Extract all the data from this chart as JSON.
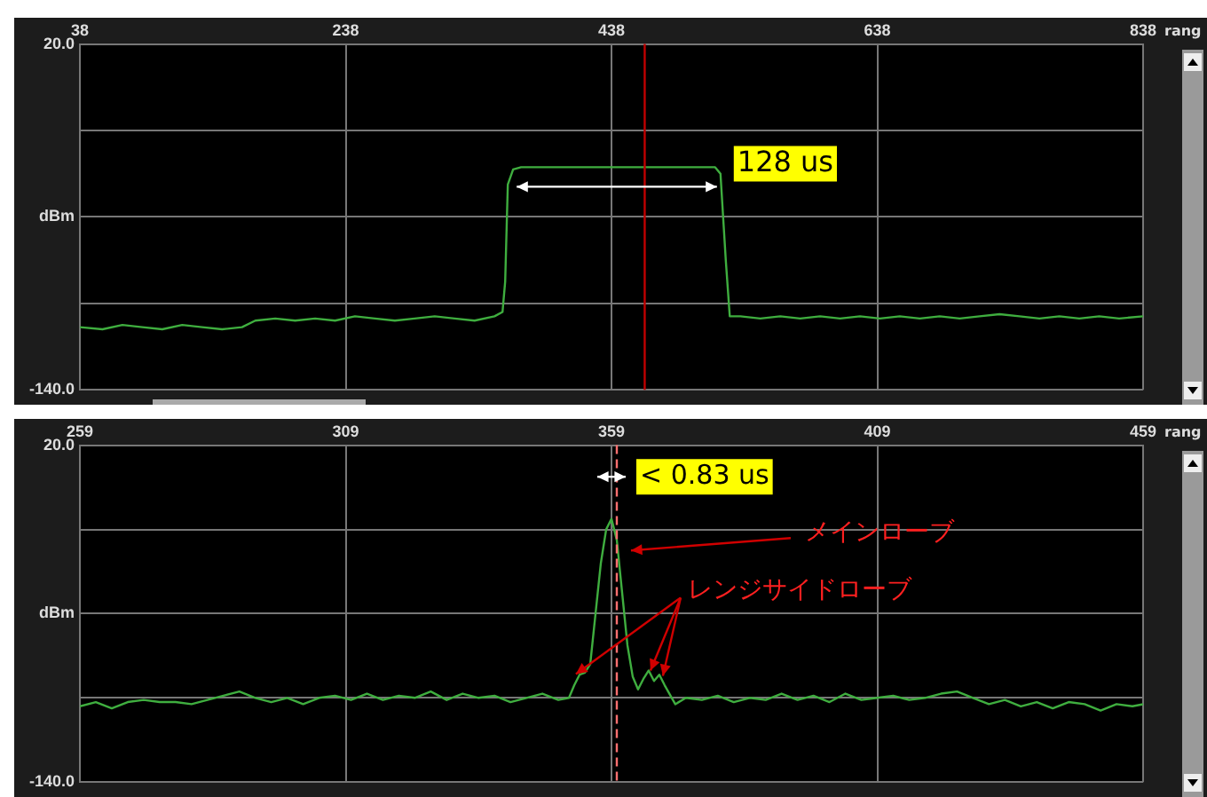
{
  "chart_data": [
    {
      "type": "line",
      "xlabel": "rang",
      "xlim": [
        38,
        838
      ],
      "xticks": [
        38,
        238,
        438,
        638,
        838
      ],
      "ylim": [
        -140,
        20
      ],
      "yticks": [
        {
          "value": 20,
          "label": "20.0"
        },
        {
          "value": -20,
          "label": null
        },
        {
          "value": -60,
          "label": "dBm"
        },
        {
          "value": -100,
          "label": null
        },
        {
          "value": -140,
          "label": "-140.0"
        }
      ],
      "grid": true,
      "legend": false,
      "marker": "none",
      "line_style": "solid",
      "series": [
        {
          "color": "#3fae3f",
          "x": [
            38,
            55,
            70,
            85,
            100,
            115,
            130,
            145,
            160,
            170,
            185,
            200,
            215,
            230,
            245,
            260,
            275,
            290,
            305,
            320,
            335,
            350,
            356,
            358,
            360,
            364,
            370,
            400,
            450,
            500,
            516,
            520,
            524,
            527,
            535,
            550,
            565,
            580,
            595,
            610,
            625,
            640,
            655,
            670,
            685,
            700,
            715,
            730,
            745,
            760,
            775,
            790,
            805,
            820,
            838
          ],
          "values": [
            -111,
            -112,
            -110,
            -111,
            -112,
            -110,
            -111,
            -112,
            -111,
            -108,
            -107,
            -108,
            -107,
            -108,
            -106,
            -107,
            -108,
            -107,
            -106,
            -107,
            -108,
            -106,
            -104,
            -90,
            -45,
            -38,
            -37,
            -37,
            -37,
            -37,
            -37,
            -40,
            -80,
            -106,
            -106,
            -107,
            -106,
            -107,
            -106,
            -107,
            -106,
            -107,
            -106,
            -107,
            -106,
            -107,
            -106,
            -105,
            -106,
            -107,
            -106,
            -107,
            -106,
            -107,
            -106
          ]
        }
      ],
      "ref_lines": [
        {
          "axis": "x",
          "value": 463,
          "color": "#c00000",
          "line_style": "solid"
        }
      ],
      "annotations": [
        {
          "text": "128 us",
          "x": 522,
          "y": -37
        }
      ]
    },
    {
      "type": "line",
      "xlabel": "rang",
      "xlim": [
        259,
        459
      ],
      "xticks": [
        259,
        309,
        359,
        409,
        459
      ],
      "ylim": [
        -140,
        20
      ],
      "yticks": [
        {
          "value": 20,
          "label": "20.0"
        },
        {
          "value": -20,
          "label": null
        },
        {
          "value": -60,
          "label": "dBm"
        },
        {
          "value": -100,
          "label": null
        },
        {
          "value": -140,
          "label": "-140.0"
        }
      ],
      "grid": true,
      "legend": false,
      "marker": "none",
      "line_style": "solid",
      "series": [
        {
          "color": "#3fae3f",
          "x": [
            259,
            262,
            265,
            268,
            271,
            274,
            277,
            280,
            283,
            286,
            289,
            292,
            295,
            298,
            301,
            304,
            307,
            310,
            313,
            316,
            319,
            322,
            325,
            328,
            331,
            334,
            337,
            340,
            343,
            346,
            349,
            351,
            352,
            353,
            354,
            355,
            356,
            357,
            358,
            359,
            360,
            361,
            362,
            363,
            364,
            365,
            366,
            367,
            368,
            369,
            371,
            373,
            376,
            379,
            382,
            385,
            388,
            391,
            394,
            397,
            400,
            403,
            406,
            409,
            412,
            415,
            418,
            421,
            424,
            427,
            430,
            433,
            436,
            439,
            442,
            445,
            448,
            451,
            454,
            457,
            459
          ],
          "values": [
            -104,
            -102,
            -105,
            -102,
            -101,
            -102,
            -102,
            -103,
            -101,
            -99,
            -97,
            -100,
            -102,
            -100,
            -103,
            -100,
            -99,
            -101,
            -98,
            -101,
            -99,
            -100,
            -97,
            -101,
            -98,
            -100,
            -99,
            -102,
            -100,
            -98,
            -101,
            -100,
            -94,
            -89,
            -88,
            -84,
            -60,
            -36,
            -20,
            -15,
            -25,
            -50,
            -75,
            -90,
            -96,
            -91,
            -87,
            -92,
            -89,
            -94,
            -103,
            -100,
            -101,
            -99,
            -102,
            -100,
            -101,
            -98,
            -101,
            -99,
            -102,
            -98,
            -101,
            -100,
            -99,
            -101,
            -100,
            -98,
            -97,
            -100,
            -103,
            -101,
            -104,
            -102,
            -105,
            -102,
            -103,
            -106,
            -103,
            -104,
            -103
          ]
        }
      ],
      "ref_lines": [
        {
          "axis": "x",
          "value": 360,
          "color": "#ff7070",
          "line_style": "dashed"
        }
      ],
      "annotations": [
        {
          "text": "< 0.83 us",
          "x": 359,
          "y": 5
        },
        {
          "text": "メインローブ",
          "x": 362,
          "y": -30
        },
        {
          "text": "レンジサイドローブ",
          "x": 366,
          "y": -87
        }
      ]
    }
  ]
}
